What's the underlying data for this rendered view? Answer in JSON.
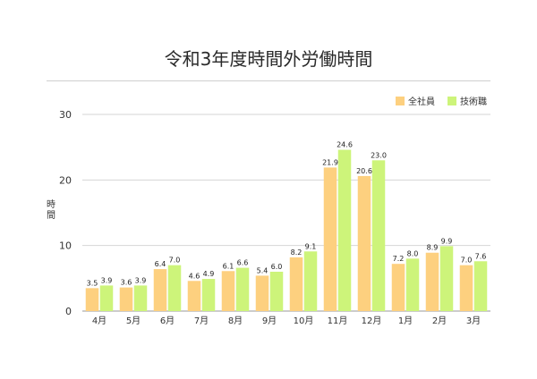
{
  "chart_data": {
    "type": "bar",
    "title": "令和3年度時間外労働時間",
    "ylabel": "時間",
    "xlabel": "",
    "ylim": [
      0,
      30
    ],
    "yticks": [
      0,
      10,
      20,
      30
    ],
    "grid": true,
    "legend_position": "top-right",
    "categories": [
      "4月",
      "5月",
      "6月",
      "7月",
      "8月",
      "9月",
      "10月",
      "11月",
      "12月",
      "1月",
      "2月",
      "3月"
    ],
    "series": [
      {
        "name": "全社員",
        "color": "#FDD07F",
        "values": [
          3.5,
          3.6,
          6.4,
          4.6,
          6.1,
          5.4,
          8.2,
          21.9,
          20.6,
          7.2,
          8.9,
          7.0
        ],
        "labels": [
          "3.5",
          "3.6",
          "6.4",
          "4.6",
          "6.1",
          "5.4",
          "8.2",
          "21.9",
          "20.6",
          "7.2",
          "8.9",
          "7.0"
        ]
      },
      {
        "name": "技術職",
        "color": "#CDF47A",
        "values": [
          3.9,
          3.9,
          7.0,
          4.9,
          6.6,
          6.0,
          9.1,
          24.6,
          23.0,
          8.0,
          9.9,
          7.6
        ],
        "labels": [
          "3.9",
          "3.9",
          "7.0",
          "4.9",
          "6.6",
          "6.0",
          "9.1",
          "24.6",
          "23.0",
          "8.0",
          "9.9",
          "7.6"
        ]
      }
    ]
  }
}
